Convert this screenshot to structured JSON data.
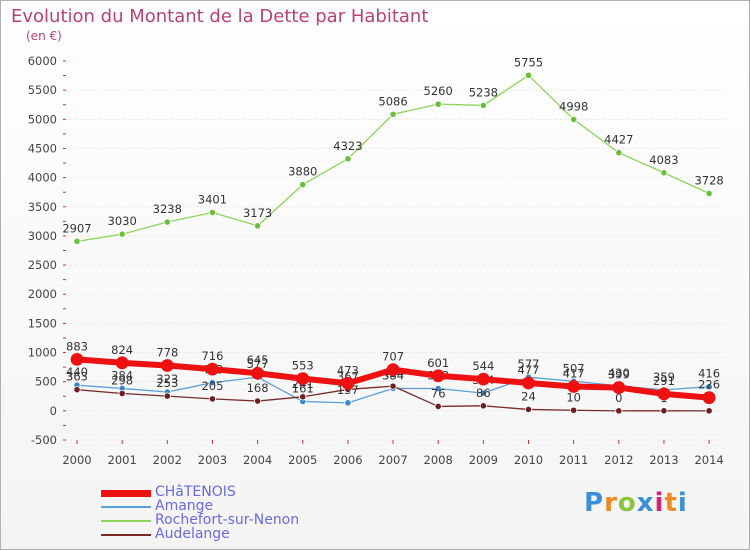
{
  "header": {
    "title": "Evolution du Montant de la Dette par Habitant",
    "unit": "(en €)"
  },
  "logo": {
    "text": "Proxiti",
    "letter_colors": [
      "#3a8fd8",
      "#f08a24",
      "#8cc63f",
      "#3a8fd8",
      "#d6227a",
      "#f08a24",
      "#3a8fd8"
    ]
  },
  "colors": {
    "title": "#b8417a",
    "axis_text": "#444444",
    "gridline": "#cfcfcf",
    "point_label": "#333333"
  },
  "chart_data": {
    "type": "line",
    "title": "Evolution du Montant de la Dette par Habitant",
    "subtitle": "(en €)",
    "xlabel": "",
    "ylabel": "",
    "x": [
      "2000",
      "2001",
      "2002",
      "2003",
      "2004",
      "2005",
      "2006",
      "2007",
      "2008",
      "2009",
      "2010",
      "2011",
      "2012",
      "2013",
      "2014"
    ],
    "ylim": [
      -500,
      6000
    ],
    "yticks": [
      "-500",
      "0",
      "500",
      "1000",
      "1500",
      "2000",
      "2500",
      "3000",
      "3500",
      "4000",
      "4500",
      "5000",
      "5500",
      "6000"
    ],
    "grid": true,
    "legend_position": "bottom-left",
    "series": [
      {
        "name": "Rochefort-sur-Nenon",
        "color": "#8cd45a",
        "marker": "#6cbf3a",
        "width": 1.3,
        "values": [
          2907,
          3030,
          3238,
          3401,
          3173,
          3880,
          4323,
          5086,
          5260,
          5238,
          5755,
          4998,
          4427,
          4083,
          3728
        ],
        "labels": [
          "2907",
          "3030",
          "3238",
          "3401",
          "3173",
          "3880",
          "4323",
          "5086",
          "5260",
          "5238",
          "5755",
          "4998",
          "4427",
          "4083",
          "3728"
        ]
      },
      {
        "name": "Amange",
        "color": "#5aa0d8",
        "marker": "#3a86c8",
        "width": 1.3,
        "values": [
          440,
          384,
          323,
          483,
          577,
          161,
          137,
          384,
          383,
          304,
          577,
          507,
          430,
          359,
          416
        ],
        "labels": [
          "440",
          "384",
          "323",
          "483",
          "577",
          "161",
          "137",
          "384",
          "383",
          "304",
          "577",
          "507",
          "430",
          "359",
          "416"
        ]
      },
      {
        "name": "Audelange",
        "color": "#7a2a2a",
        "marker": "#6b1f1f",
        "width": 1.3,
        "values": [
          363,
          298,
          253,
          205,
          168,
          241,
          367,
          424,
          76,
          86,
          24,
          10,
          0,
          1,
          0
        ],
        "labels": [
          "363",
          "298",
          "253",
          "205",
          "168",
          "241",
          "367",
          "424",
          "76",
          "86",
          "24",
          "10",
          "0",
          "1",
          "0"
        ]
      },
      {
        "name": "CHâTENOIS",
        "color": "#ee1111",
        "marker": "#ee1111",
        "width": 6,
        "values": [
          883,
          824,
          778,
          716,
          645,
          553,
          473,
          707,
          601,
          544,
          477,
          417,
          399,
          291,
          226
        ],
        "labels": [
          "883",
          "824",
          "778",
          "716",
          "645",
          "553",
          "473",
          "707",
          "601",
          "544",
          "477",
          "417",
          "399",
          "291",
          "226"
        ]
      }
    ],
    "legend": [
      {
        "name": "CHâTENOIS",
        "color": "#ee1111",
        "text_color": "#6a6ae0",
        "thickness": 7
      },
      {
        "name": "Amange",
        "color": "#5aa0d8",
        "text_color": "#6a6ae0",
        "thickness": 2
      },
      {
        "name": "Rochefort-sur-Nenon",
        "color": "#8cd45a",
        "text_color": "#6a6ae0",
        "thickness": 2
      },
      {
        "name": "Audelange",
        "color": "#7a2a2a",
        "text_color": "#6a6ae0",
        "thickness": 2
      }
    ]
  }
}
